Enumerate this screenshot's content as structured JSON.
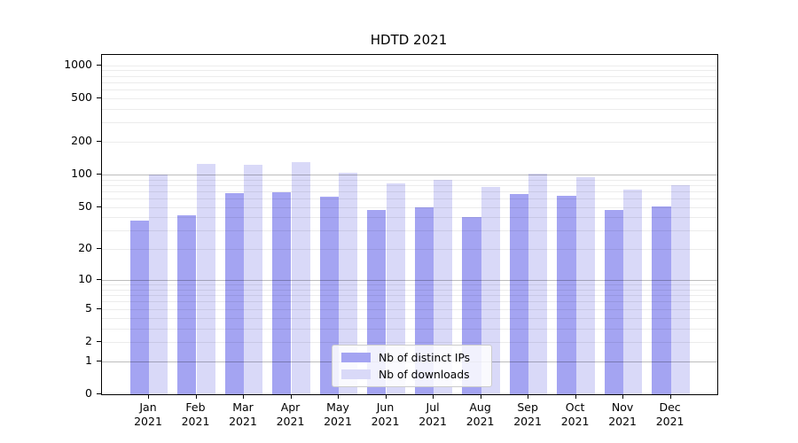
{
  "title": "HDTD 2021",
  "chart_data": {
    "type": "bar",
    "title": "HDTD 2021",
    "categories": [
      "Jan 2021",
      "Feb 2021",
      "Mar 2021",
      "Apr 2021",
      "May 2021",
      "Jun 2021",
      "Jul 2021",
      "Aug 2021",
      "Sep 2021",
      "Oct 2021",
      "Nov 2021",
      "Dec 2021"
    ],
    "category_months": [
      "Jan",
      "Feb",
      "Mar",
      "Apr",
      "May",
      "Jun",
      "Jul",
      "Aug",
      "Sep",
      "Oct",
      "Nov",
      "Dec"
    ],
    "category_year": "2021",
    "series": [
      {
        "name": "Nb of distinct IPs",
        "color": "#a4a4f2",
        "values": [
          37,
          42,
          67,
          68,
          62,
          47,
          50,
          40,
          66,
          63,
          47,
          51
        ]
      },
      {
        "name": "Nb of downloads",
        "color": "#d9d9f8",
        "values": [
          100,
          126,
          123,
          131,
          104,
          83,
          89,
          77,
          101,
          94,
          72,
          80
        ]
      }
    ],
    "xlabel": "",
    "ylabel": "",
    "yscale": "symlog (log1p)",
    "ylim": [
      0,
      1240
    ],
    "yticks": [
      0,
      1,
      2,
      5,
      10,
      20,
      50,
      100,
      200,
      500,
      1000
    ],
    "ytick_labels": [
      "0",
      "1",
      "2",
      "5",
      "10",
      "20",
      "50",
      "100",
      "200",
      "500",
      "1000"
    ],
    "major_gridlines": [
      1,
      10,
      100
    ],
    "minor_gridlines": [
      2,
      3,
      4,
      5,
      6,
      7,
      8,
      9,
      20,
      30,
      40,
      50,
      60,
      70,
      80,
      90,
      200,
      300,
      400,
      500,
      600,
      700,
      800,
      900,
      1000
    ],
    "grid": true,
    "grid_on_top_of_bars": true,
    "legend_position": "lower center"
  }
}
